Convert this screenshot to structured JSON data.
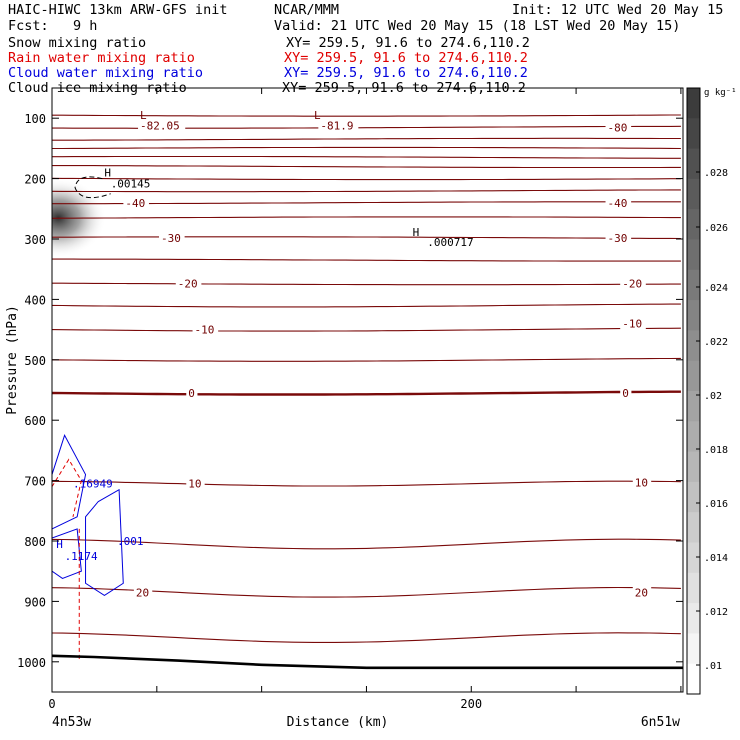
{
  "header": {
    "title_left": "HAIC-HIWC 13km ARW-GFS init",
    "title_center": "NCAR/MMM",
    "init": "Init: 12 UTC Wed 20 May 15",
    "fcst": "Fcst:   9 h",
    "valid": "Valid: 21 UTC Wed 20 May 15 (18 LST Wed 20 May 15)"
  },
  "fields": [
    {
      "label": "Snow mixing ratio",
      "xy": "XY= 259.5, 91.6 to 274.6,110.2",
      "color": "#000000"
    },
    {
      "label": "Rain water mixing ratio",
      "xy": "XY= 259.5, 91.6 to 274.6,110.2",
      "color": "#e00000"
    },
    {
      "label": "Cloud water mixing ratio",
      "xy": "XY= 259.5, 91.6 to 274.6,110.2",
      "color": "#0000dd"
    },
    {
      "label": "Cloud ice mixing ratio",
      "xy": "XY= 259.5, 91.6 to 274.6,110.2",
      "color": "#000000"
    }
  ],
  "chart_data": {
    "type": "cross-section",
    "xlabel": "Distance (km)",
    "ylabel": "Pressure (hPa)",
    "xlim": [
      0,
      301
    ],
    "ylim": [
      1050,
      50
    ],
    "x_ticks": [
      0,
      200
    ],
    "y_ticks": [
      100,
      200,
      300,
      400,
      500,
      600,
      700,
      800,
      900,
      1000
    ],
    "x_end_labels": [
      "4n53w",
      "6n51w"
    ],
    "colorbar": {
      "unit": "g kg⁻¹",
      "ticks": [
        ".01",
        ".012",
        ".014",
        ".016",
        ".018",
        ".02",
        ".022",
        ".024",
        ".026",
        ".028"
      ]
    },
    "temperature_labels": [
      {
        "text": "-82.05",
        "x": 42,
        "p": 112
      },
      {
        "text": "-81.9",
        "x": 128,
        "p": 112
      },
      {
        "text": "-80",
        "x": 265,
        "p": 115
      },
      {
        "text": "-40",
        "x": 35,
        "p": 240
      },
      {
        "text": "-40",
        "x": 265,
        "p": 240
      },
      {
        "text": "-30",
        "x": 52,
        "p": 298
      },
      {
        "text": "-30",
        "x": 265,
        "p": 298
      },
      {
        "text": "-20",
        "x": 60,
        "p": 374
      },
      {
        "text": "-20",
        "x": 272,
        "p": 374
      },
      {
        "text": "-10",
        "x": 68,
        "p": 450
      },
      {
        "text": "-10",
        "x": 272,
        "p": 440
      },
      {
        "text": "0",
        "x": 65,
        "p": 555
      },
      {
        "text": "0",
        "x": 272,
        "p": 555
      },
      {
        "text": "10",
        "x": 65,
        "p": 705
      },
      {
        "text": "10",
        "x": 278,
        "p": 703
      },
      {
        "text": "20",
        "x": 40,
        "p": 885
      },
      {
        "text": "20",
        "x": 278,
        "p": 885
      }
    ],
    "extrema_labels": [
      {
        "text": "L",
        "x": 42,
        "p": 95,
        "color": "#700000"
      },
      {
        "text": "L",
        "x": 125,
        "p": 95,
        "color": "#700000"
      },
      {
        "text": "H",
        "x": 25,
        "p": 190,
        "color": "#000000"
      },
      {
        "text": ".00145",
        "x": 28,
        "p": 208,
        "color": "#000000"
      },
      {
        "text": "H",
        "x": 172,
        "p": 288,
        "color": "#000000"
      },
      {
        "text": ".000717",
        "x": 179,
        "p": 305,
        "color": "#000000"
      },
      {
        "text": ".16949",
        "x": 10,
        "p": 705,
        "color": "#0000dd"
      },
      {
        "text": ".001",
        "x": 31,
        "p": 800,
        "color": "#0000dd"
      },
      {
        "text": "H",
        "x": 2,
        "p": 805,
        "color": "#0000dd"
      },
      {
        "text": ".1174",
        "x": 6,
        "p": 825,
        "color": "#0000dd"
      }
    ],
    "isotherm_pressures": [
      95,
      115,
      135,
      150,
      165,
      180,
      200,
      220,
      240,
      265,
      298,
      335,
      374,
      410,
      450,
      500,
      555,
      705,
      805,
      885,
      960
    ],
    "isotherm_bold": [
      555
    ],
    "terrain_pressure": [
      {
        "x": 0,
        "p": 990
      },
      {
        "x": 20,
        "p": 992
      },
      {
        "x": 60,
        "p": 998
      },
      {
        "x": 100,
        "p": 1005
      },
      {
        "x": 150,
        "p": 1010
      },
      {
        "x": 301,
        "p": 1010
      }
    ],
    "ice_shading": {
      "x": 3,
      "p": 265,
      "max": 0.03
    }
  }
}
